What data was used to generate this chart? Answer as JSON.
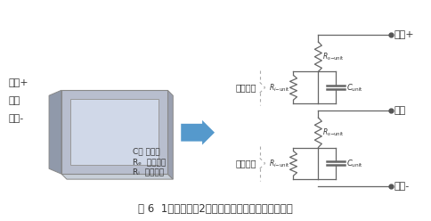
{
  "title": "图 6  1个封装中有2个单位电池组成的村田超级电容",
  "title_fontsize": 9,
  "bg_color": "#ffffff",
  "left_label_1": "正极+",
  "left_label_2": "平衡",
  "left_label_3": "负极-",
  "right_label_1": "正极+",
  "right_label_2": "平衡",
  "right_label_3": "负极-",
  "unit_label": "单位元件",
  "legend_1": "C： 电容器",
  "legend_2": "Rₑ  串联阻抗",
  "legend_3": "Rᵢ  绝缘阻抗",
  "box_face": "#b8bece",
  "box_side": "#9099aa",
  "box_inner": "#d0d8e8",
  "box_tab": "#a0a8b8",
  "arrow_color": "#5599cc",
  "circuit_color": "#666666",
  "brace_color": "#aaaaaa",
  "text_color": "#333333",
  "dot_color": "#555555"
}
